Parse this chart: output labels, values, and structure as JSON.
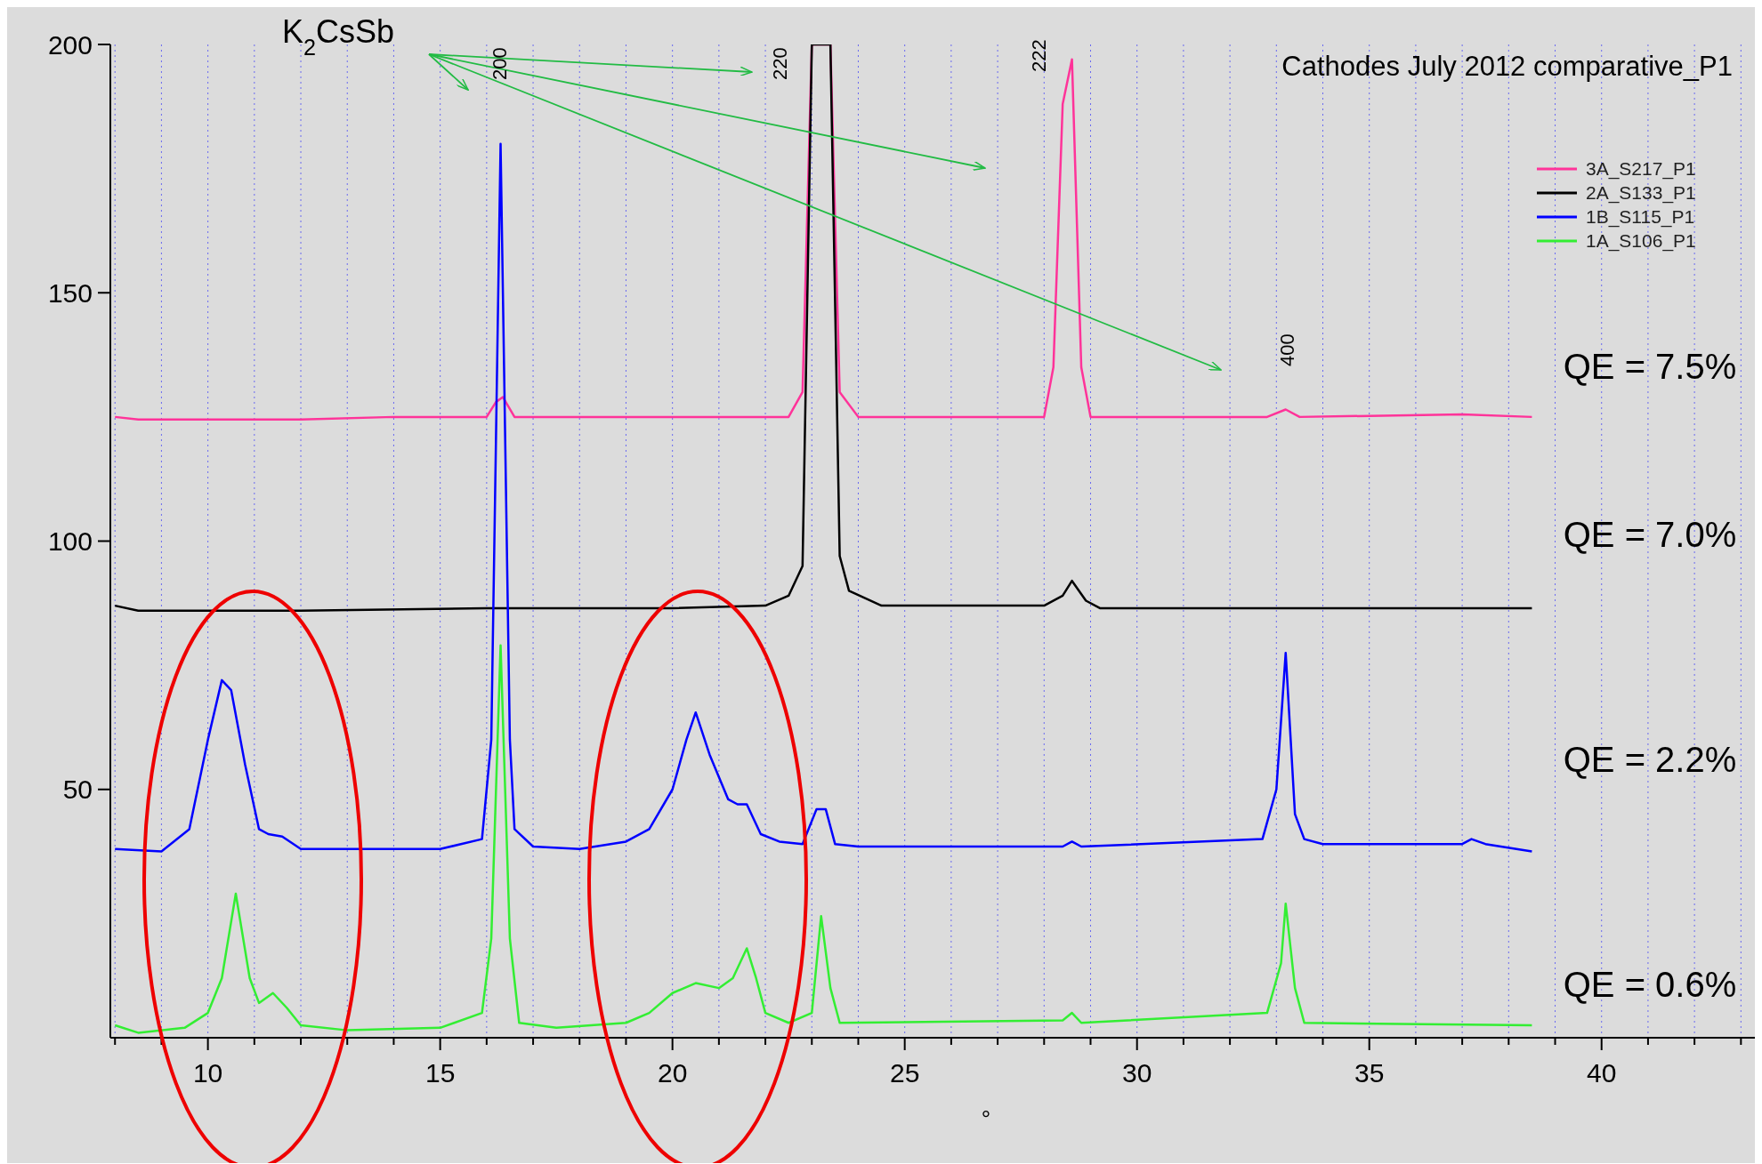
{
  "chart_data": {
    "type": "line",
    "title": "Cathodes July 2012 comparative_P1",
    "xlabel": "°",
    "xlim": [
      7.9,
      43.3
    ],
    "ylim": [
      0,
      200
    ],
    "xticks": [
      {
        "value": 8,
        "label": null
      },
      {
        "value": 9,
        "label": null
      },
      10,
      {
        "value": 11,
        "label": null
      },
      {
        "value": 12,
        "label": null
      },
      {
        "value": 13,
        "label": null
      },
      {
        "value": 14,
        "label": null
      },
      15,
      {
        "value": 16,
        "label": null
      },
      {
        "value": 17,
        "label": null
      },
      {
        "value": 18,
        "label": null
      },
      {
        "value": 19,
        "label": null
      },
      20,
      {
        "value": 21,
        "label": null
      },
      {
        "value": 22,
        "label": null
      },
      {
        "value": 23,
        "label": null
      },
      {
        "value": 24,
        "label": null
      },
      25,
      {
        "value": 26,
        "label": null
      },
      {
        "value": 27,
        "label": null
      },
      {
        "value": 28,
        "label": null
      },
      {
        "value": 29,
        "label": null
      },
      30,
      {
        "value": 31,
        "label": null
      },
      {
        "value": 32,
        "label": null
      },
      {
        "value": 33,
        "label": null
      },
      {
        "value": 34,
        "label": null
      },
      35,
      {
        "value": 36,
        "label": null
      },
      {
        "value": 37,
        "label": null
      },
      {
        "value": 38,
        "label": null
      },
      {
        "value": 39,
        "label": null
      },
      40,
      {
        "value": 41,
        "label": null
      },
      {
        "value": 42,
        "label": null
      },
      {
        "value": 43,
        "label": null
      }
    ],
    "yticks": [
      50,
      100,
      150,
      200
    ],
    "grid": "x",
    "legend": "top right",
    "marker": "none",
    "line_style": "solid",
    "series": [
      {
        "name": "3A_S217_P1",
        "color": "#ff3399",
        "x": [
          8,
          8.5,
          12,
          14,
          16,
          16.2,
          16.35,
          16.6,
          20,
          22.5,
          22.8,
          23.0,
          23.4,
          23.6,
          24,
          28,
          28.2,
          28.4,
          28.6,
          28.8,
          29,
          32.8,
          33.2,
          33.5,
          37,
          38.5
        ],
        "values": [
          125,
          124.5,
          124.5,
          125,
          125,
          128,
          129,
          125,
          125,
          125,
          130,
          200,
          200,
          130,
          125,
          125,
          135,
          188,
          197,
          135,
          125,
          125,
          126.5,
          125,
          125.5,
          125
        ]
      },
      {
        "name": "2A_S133_P1",
        "color": "#000000",
        "x": [
          8,
          8.5,
          12,
          16,
          20,
          22,
          22.5,
          22.8,
          23.0,
          23.4,
          23.6,
          23.8,
          24.5,
          28,
          28.4,
          28.6,
          28.9,
          29.2,
          33,
          38.5
        ],
        "values": [
          87,
          86,
          86,
          86.5,
          86.5,
          87,
          89,
          95,
          200,
          200,
          97,
          90,
          87,
          87,
          89,
          92,
          88,
          86.5,
          86.5,
          86.5
        ]
      },
      {
        "name": "1B_S115_P1",
        "color": "#0000ff",
        "x": [
          8,
          9,
          9.6,
          10,
          10.3,
          10.5,
          10.8,
          11.1,
          11.3,
          11.6,
          12,
          15,
          15.9,
          16.1,
          16.3,
          16.5,
          16.6,
          17,
          18,
          19,
          19.5,
          20,
          20.3,
          20.5,
          20.8,
          21.2,
          21.4,
          21.6,
          21.9,
          22.3,
          22.8,
          23.1,
          23.3,
          23.5,
          24,
          28.4,
          28.6,
          28.8,
          32.7,
          33.0,
          33.2,
          33.4,
          33.6,
          34,
          37,
          37.2,
          37.5,
          38.5
        ],
        "values": [
          38,
          37.5,
          42,
          60,
          72,
          70,
          55,
          42,
          41,
          40.5,
          38,
          38,
          40,
          60,
          180,
          60,
          42,
          38.5,
          38,
          39.5,
          42,
          50,
          60,
          65.5,
          57,
          48,
          47,
          47,
          41,
          39.5,
          39,
          46,
          46,
          39,
          38.5,
          38.5,
          39.5,
          38.5,
          40,
          50,
          77.5,
          45,
          40,
          39,
          39,
          40,
          39,
          37.5
        ]
      },
      {
        "name": "1A_S106_P1",
        "color": "#33ee33",
        "x": [
          8,
          8.5,
          9.5,
          10,
          10.3,
          10.6,
          10.9,
          11.1,
          11.4,
          11.7,
          12,
          13,
          15,
          15.9,
          16.1,
          16.3,
          16.5,
          16.7,
          17.5,
          19,
          19.5,
          20,
          20.5,
          21,
          21.3,
          21.6,
          21.8,
          22,
          22.5,
          23,
          23.2,
          23.4,
          23.6,
          28.4,
          28.6,
          28.8,
          32.8,
          33.1,
          33.2,
          33.4,
          33.6,
          38.5
        ],
        "values": [
          2.5,
          1,
          2,
          5,
          12,
          29,
          12,
          7,
          9,
          6,
          2.5,
          1.5,
          2,
          5,
          20,
          79,
          20,
          3,
          2,
          3,
          5,
          9,
          11,
          10,
          12,
          18,
          12,
          5,
          3,
          5,
          24.5,
          10,
          3,
          3.5,
          5,
          3,
          5,
          15,
          27,
          10,
          3,
          2.5
        ]
      }
    ],
    "annotations": [
      "K$_{2}$CsSb",
      "200",
      "220",
      "222",
      "400",
      "QE = 7.5%",
      "QE = 7.0%",
      "QE = 2.2%",
      "QE = 0.6%"
    ]
  }
}
